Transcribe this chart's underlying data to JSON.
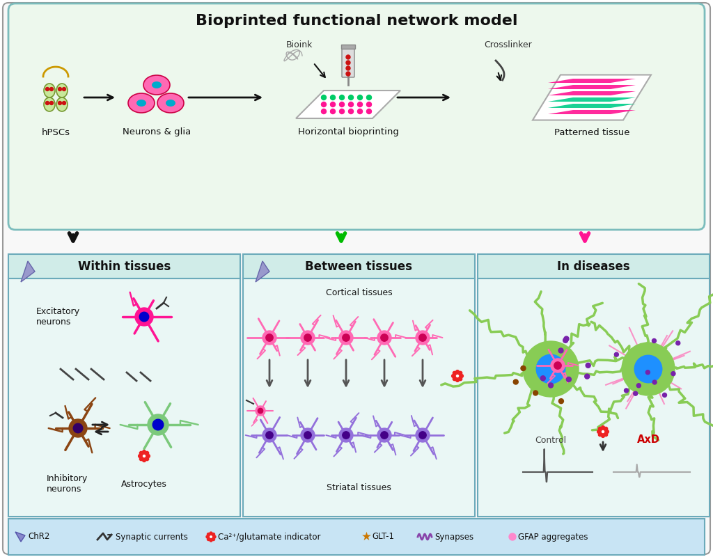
{
  "title": "Bioprinted functional network model",
  "bg_light_green": "#e8f5e9",
  "bg_light_cyan": "#e0f4f4",
  "border_teal": "#7bbcbc",
  "border_blue": "#6baaba",
  "top_labels": [
    "hPSCs",
    "Neurons & glia",
    "Horizontal bioprinting",
    "Patterned tissue"
  ],
  "top_sublabels": [
    "Bioink",
    "Crosslinker"
  ],
  "bottom_titles": [
    "Within tissues",
    "Between tissues",
    "In diseases"
  ],
  "bottom_labels_left": [
    "Excitatory\nneurons",
    "Inhibitory\nneurons",
    "Astrocytes"
  ],
  "bottom_labels_mid": [
    "Cortical tissues",
    "Striatal tissues"
  ],
  "bottom_labels_right": [
    "Control",
    "AxD"
  ],
  "legend_items": [
    "ChR2",
    "Synaptic currents",
    "Ca²⁺/glutamate indicator",
    "GLT-1",
    "Synapses",
    "GFAP aggregates"
  ],
  "colors": {
    "excitatory_pink": "#ff1493",
    "inhibitory_brown": "#8b4513",
    "astrocyte_green": "#7bc97b",
    "cortical_pink": "#ff69b4",
    "striatal_purple": "#9370db",
    "disease_green": "#88cc55",
    "nucleus_blue": "#1e90ff",
    "nucleus_dark": "#000099",
    "chr2_blue": "#8888cc",
    "synapse_purple": "#8844aa",
    "arrow_black": "#111111",
    "arrow_green": "#00aa00",
    "arrow_pink": "#ff1493",
    "gear_red": "#ee2222",
    "glt_orange": "#cc7700",
    "gfap_pink": "#ff88cc"
  }
}
